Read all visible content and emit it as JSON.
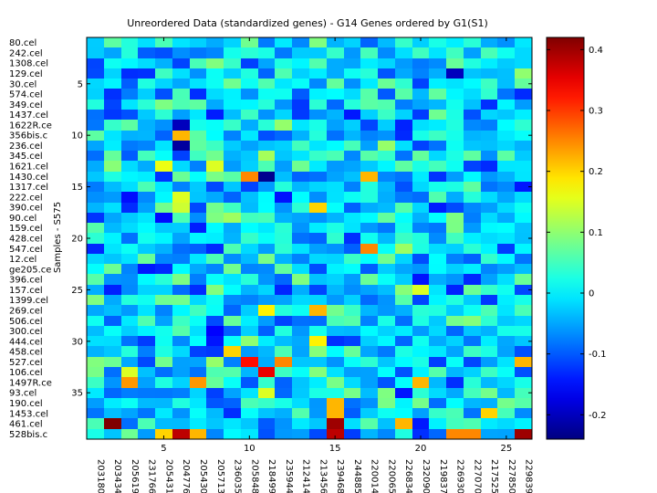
{
  "chart_data": {
    "type": "heatmap",
    "title": "Unreordered Data (standardized genes) - G14 Genes ordered by G1(S1)",
    "xlabel": "",
    "ylabel": "Samples - S575",
    "columns": [
      "203180_",
      "203434_",
      "205619_",
      "231766_",
      "205431_",
      "204776_",
      "205430_",
      "205713_",
      "236035_",
      "205848_",
      "218499_",
      "235944_",
      "212414_",
      "213456_",
      "239468_",
      "244885_",
      "220014_",
      "220065_",
      "226834_",
      "232090_",
      "219837_",
      "226930_",
      "227070_",
      "217525_",
      "227850_",
      "229839_"
    ],
    "column_labels": [
      "203180_",
      "203434_",
      "205619_",
      "231766_",
      "205431_",
      "204776_",
      "205430_",
      "205713_",
      "236035_",
      "205848_",
      "218499_",
      "235944_",
      "212414_",
      "213456_",
      "239468_",
      "244885_",
      "220014_",
      "220065_",
      "226834_",
      "232090_",
      "219837_",
      "226930_",
      "227070_",
      "217525_",
      "227850_",
      "229839_"
    ],
    "rows": [
      "80.cel",
      "242.cel",
      "1308.cel",
      "129.cel",
      "30.cel",
      "574.cel",
      "349.cel",
      "1437.cel",
      "1622R.ce",
      "356bis.c",
      "236.cel",
      "345.cel",
      "1621.cel",
      "1430.cel",
      "1317.cel",
      "222.cel",
      "390.cel",
      "90.cel",
      "159.cel",
      "428.cel",
      "547.cel",
      "12.cel",
      "ge205.ce",
      "396.cel",
      "157.cel",
      "1399.cel",
      "269.cel",
      "506.cel",
      "300.cel",
      "444.cel",
      "458.cel",
      "527.cel",
      "106.cel",
      "1497R.ce",
      "93.cel",
      "190.cel",
      "1453.cel",
      "461.cel",
      "528bis.c"
    ],
    "x_ticks": [
      {
        "value": 5,
        "label": "5"
      },
      {
        "value": 10,
        "label": "10"
      },
      {
        "value": 15,
        "label": "15"
      },
      {
        "value": 20,
        "label": "20"
      },
      {
        "value": 25,
        "label": "25"
      }
    ],
    "y_ticks": [
      {
        "value": 5,
        "label": "5"
      },
      {
        "value": 10,
        "label": "10"
      },
      {
        "value": 15,
        "label": "15"
      },
      {
        "value": 20,
        "label": "20"
      },
      {
        "value": 25,
        "label": "25"
      },
      {
        "value": 30,
        "label": "30"
      },
      {
        "value": 35,
        "label": "35"
      }
    ],
    "n_rows": 39,
    "n_cols": 26,
    "colorbar": {
      "colormap": "jet",
      "vmin": -0.24,
      "vmax": 0.42,
      "ticks": [
        {
          "value": -0.2,
          "label": "-0.2"
        },
        {
          "value": -0.1,
          "label": "-0.1"
        },
        {
          "value": 0,
          "label": "0"
        },
        {
          "value": 0.1,
          "label": "0.1"
        },
        {
          "value": 0.2,
          "label": "0.2"
        },
        {
          "value": 0.3,
          "label": "0.3"
        },
        {
          "value": 0.4,
          "label": "0.4"
        }
      ]
    },
    "hotspots": [
      {
        "row": 4,
        "col": 22,
        "value": -0.2
      },
      {
        "row": 9,
        "col": 6,
        "value": -0.2
      },
      {
        "row": 10,
        "col": 6,
        "value": 0.22
      },
      {
        "row": 11,
        "col": 6,
        "value": -0.22
      },
      {
        "row": 13,
        "col": 5,
        "value": 0.16
      },
      {
        "row": 13,
        "col": 8,
        "value": 0.15
      },
      {
        "row": 14,
        "col": 10,
        "value": 0.25
      },
      {
        "row": 14,
        "col": 11,
        "value": -0.23
      },
      {
        "row": 14,
        "col": 17,
        "value": 0.22
      },
      {
        "row": 16,
        "col": 6,
        "value": 0.15
      },
      {
        "row": 17,
        "col": 6,
        "value": 0.14
      },
      {
        "row": 17,
        "col": 14,
        "value": 0.2
      },
      {
        "row": 21,
        "col": 17,
        "value": 0.25
      },
      {
        "row": 25,
        "col": 20,
        "value": 0.15
      },
      {
        "row": 27,
        "col": 11,
        "value": 0.18
      },
      {
        "row": 27,
        "col": 14,
        "value": 0.22
      },
      {
        "row": 30,
        "col": 14,
        "value": 0.18
      },
      {
        "row": 31,
        "col": 9,
        "value": 0.2
      },
      {
        "row": 32,
        "col": 10,
        "value": 0.33
      },
      {
        "row": 32,
        "col": 12,
        "value": 0.25
      },
      {
        "row": 32,
        "col": 26,
        "value": 0.22
      },
      {
        "row": 33,
        "col": 11,
        "value": 0.35
      },
      {
        "row": 33,
        "col": 3,
        "value": 0.15
      },
      {
        "row": 34,
        "col": 3,
        "value": 0.24
      },
      {
        "row": 34,
        "col": 7,
        "value": 0.24
      },
      {
        "row": 34,
        "col": 20,
        "value": 0.22
      },
      {
        "row": 35,
        "col": 11,
        "value": 0.15
      },
      {
        "row": 36,
        "col": 15,
        "value": 0.22
      },
      {
        "row": 37,
        "col": 15,
        "value": 0.22
      },
      {
        "row": 37,
        "col": 24,
        "value": 0.2
      },
      {
        "row": 38,
        "col": 2,
        "value": 0.42
      },
      {
        "row": 38,
        "col": 15,
        "value": 0.4
      },
      {
        "row": 38,
        "col": 19,
        "value": 0.22
      },
      {
        "row": 39,
        "col": 6,
        "value": 0.38
      },
      {
        "row": 39,
        "col": 15,
        "value": 0.38
      },
      {
        "row": 39,
        "col": 26,
        "value": 0.4
      },
      {
        "row": 39,
        "col": 7,
        "value": 0.22
      },
      {
        "row": 39,
        "col": 5,
        "value": 0.2
      },
      {
        "row": 39,
        "col": 22,
        "value": 0.25
      },
      {
        "row": 39,
        "col": 23,
        "value": 0.25
      }
    ]
  }
}
